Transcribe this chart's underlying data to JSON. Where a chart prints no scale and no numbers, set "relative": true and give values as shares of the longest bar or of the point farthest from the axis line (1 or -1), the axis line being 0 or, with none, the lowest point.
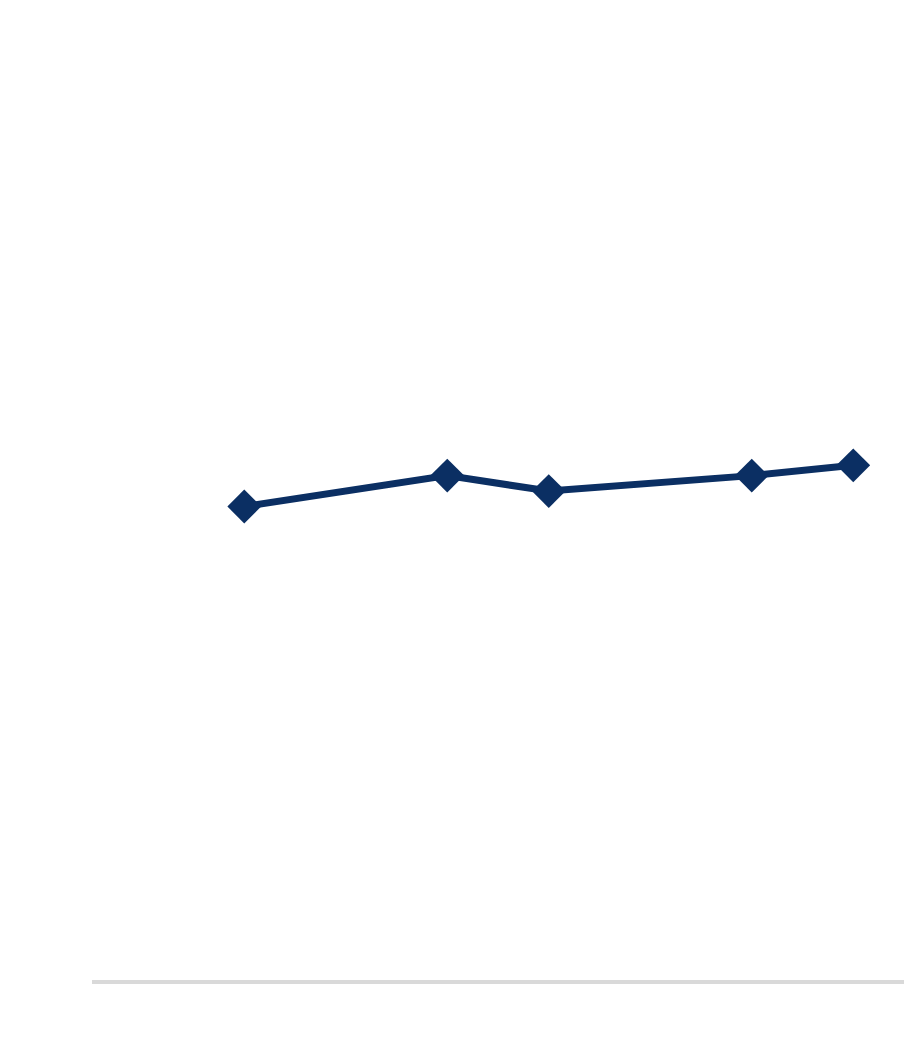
{
  "chart_data": {
    "type": "line",
    "relative": true,
    "categories": [
      null,
      null,
      null,
      null,
      null,
      null,
      null,
      null
    ],
    "series": [
      {
        "color": "#0b2f63",
        "values": [
          null,
          0.92,
          null,
          0.98,
          0.95,
          null,
          0.98,
          1
        ]
      }
    ],
    "marker": "diamond",
    "line_style": "solid",
    "legend": false,
    "grid": false
  }
}
